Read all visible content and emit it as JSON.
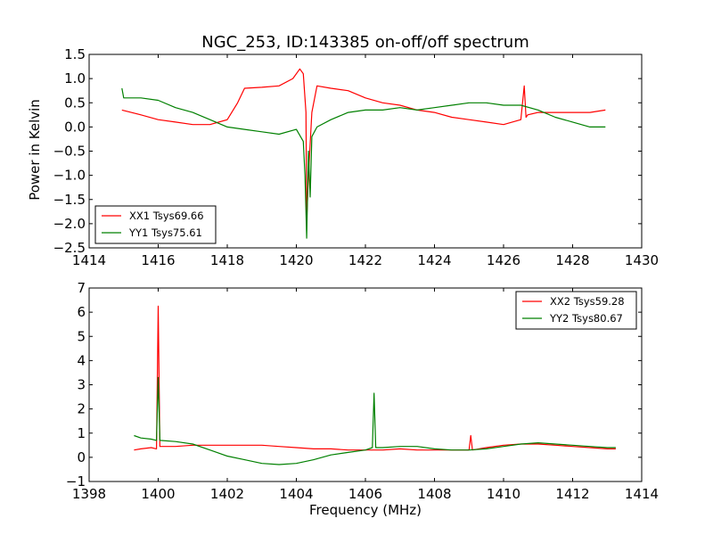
{
  "figure_title": "NGC_253, ID:143385 on-off/off spectrum",
  "colors": {
    "xx": "#ff0000",
    "yy": "#008000",
    "axes": "#000000",
    "background": "#ffffff"
  },
  "chart_data": [
    {
      "type": "line",
      "title": "NGC_253, ID:143385 on-off/off spectrum",
      "xlabel": "",
      "ylabel": "Power in Kelvin",
      "xlim": [
        1414,
        1430
      ],
      "ylim": [
        -2.5,
        1.5
      ],
      "xticks": [
        1414,
        1416,
        1418,
        1420,
        1422,
        1424,
        1426,
        1428,
        1430
      ],
      "yticks": [
        -2.5,
        -2.0,
        -1.5,
        -1.0,
        -0.5,
        0.0,
        0.5,
        1.0,
        1.5
      ],
      "xtick_labels": [
        "1414",
        "1416",
        "1418",
        "1420",
        "1422",
        "1424",
        "1426",
        "1428",
        "1430"
      ],
      "ytick_labels": [
        "−2.5",
        "−2.0",
        "−1.5",
        "−1.0",
        "−0.5",
        "0.0",
        "0.5",
        "1.0",
        "1.5"
      ],
      "legend_position": "lower-left",
      "series": [
        {
          "name": "XX1 Tsys69.66",
          "color": "#ff0000",
          "x": [
            1414.95,
            1415.5,
            1416.0,
            1416.5,
            1417.0,
            1417.5,
            1418.0,
            1418.3,
            1418.5,
            1419.0,
            1419.5,
            1419.9,
            1420.1,
            1420.2,
            1420.28,
            1420.3,
            1420.35,
            1420.45,
            1420.6,
            1421.0,
            1421.5,
            1422.0,
            1422.5,
            1423.0,
            1423.5,
            1424.0,
            1424.5,
            1425.0,
            1425.5,
            1426.0,
            1426.5,
            1426.6,
            1426.65,
            1426.7,
            1427.0,
            1427.5,
            1428.0,
            1428.5,
            1428.95
          ],
          "y": [
            0.35,
            0.25,
            0.15,
            0.1,
            0.05,
            0.05,
            0.15,
            0.5,
            0.8,
            0.82,
            0.85,
            1.0,
            1.2,
            1.1,
            0.3,
            -1.9,
            -1.0,
            0.3,
            0.85,
            0.8,
            0.75,
            0.6,
            0.5,
            0.45,
            0.35,
            0.3,
            0.2,
            0.15,
            0.1,
            0.05,
            0.15,
            0.85,
            0.2,
            0.25,
            0.3,
            0.3,
            0.3,
            0.3,
            0.35
          ]
        },
        {
          "name": "YY1 Tsys75.61",
          "color": "#008000",
          "x": [
            1414.95,
            1415.0,
            1415.5,
            1416.0,
            1416.5,
            1417.0,
            1417.5,
            1418.0,
            1418.5,
            1419.0,
            1419.5,
            1420.0,
            1420.2,
            1420.25,
            1420.3,
            1420.35,
            1420.4,
            1420.45,
            1420.6,
            1421.0,
            1421.5,
            1422.0,
            1422.5,
            1423.0,
            1423.5,
            1424.0,
            1424.5,
            1425.0,
            1425.5,
            1426.0,
            1426.5,
            1427.0,
            1427.5,
            1428.0,
            1428.5,
            1428.95
          ],
          "y": [
            0.8,
            0.6,
            0.6,
            0.55,
            0.4,
            0.3,
            0.15,
            0.0,
            -0.05,
            -0.1,
            -0.15,
            -0.05,
            -0.3,
            -1.0,
            -2.3,
            -0.5,
            -1.45,
            -0.2,
            0.0,
            0.15,
            0.3,
            0.35,
            0.35,
            0.4,
            0.35,
            0.4,
            0.45,
            0.5,
            0.5,
            0.45,
            0.45,
            0.35,
            0.2,
            0.1,
            0.0,
            0.0
          ]
        }
      ]
    },
    {
      "type": "line",
      "title": "",
      "xlabel": "Frequency (MHz)",
      "ylabel": "",
      "xlim": [
        1398,
        1414
      ],
      "ylim": [
        -1,
        7
      ],
      "xticks": [
        1398,
        1400,
        1402,
        1404,
        1406,
        1408,
        1410,
        1412,
        1414
      ],
      "yticks": [
        -1,
        0,
        1,
        2,
        3,
        4,
        5,
        6,
        7
      ],
      "xtick_labels": [
        "1398",
        "1400",
        "1402",
        "1404",
        "1406",
        "1408",
        "1410",
        "1412",
        "1414"
      ],
      "ytick_labels": [
        "−1",
        "0",
        "1",
        "2",
        "3",
        "4",
        "5",
        "6",
        "7"
      ],
      "legend_position": "upper-right",
      "series": [
        {
          "name": "XX2 Tsys59.28",
          "color": "#ff0000",
          "x": [
            1399.3,
            1399.5,
            1399.8,
            1399.95,
            1400.0,
            1400.05,
            1400.5,
            1401.0,
            1401.5,
            1402.0,
            1402.5,
            1403.0,
            1403.5,
            1404.0,
            1404.5,
            1405.0,
            1405.5,
            1406.0,
            1406.5,
            1407.0,
            1407.5,
            1408.0,
            1408.5,
            1409.0,
            1409.05,
            1409.1,
            1409.5,
            1410.0,
            1410.5,
            1411.0,
            1411.5,
            1412.0,
            1412.5,
            1413.0,
            1413.25
          ],
          "y": [
            0.3,
            0.35,
            0.4,
            0.35,
            6.25,
            0.45,
            0.45,
            0.5,
            0.5,
            0.5,
            0.5,
            0.5,
            0.45,
            0.4,
            0.35,
            0.35,
            0.3,
            0.3,
            0.3,
            0.35,
            0.3,
            0.3,
            0.3,
            0.3,
            0.9,
            0.3,
            0.4,
            0.5,
            0.55,
            0.55,
            0.5,
            0.45,
            0.4,
            0.35,
            0.35
          ]
        },
        {
          "name": "YY2 Tsys80.67",
          "color": "#008000",
          "x": [
            1399.3,
            1399.5,
            1399.8,
            1399.95,
            1400.0,
            1400.05,
            1400.5,
            1401.0,
            1401.5,
            1402.0,
            1402.5,
            1403.0,
            1403.5,
            1404.0,
            1404.5,
            1405.0,
            1405.5,
            1406.0,
            1406.2,
            1406.25,
            1406.3,
            1406.5,
            1407.0,
            1407.5,
            1408.0,
            1408.5,
            1409.0,
            1409.5,
            1410.0,
            1410.5,
            1411.0,
            1411.5,
            1412.0,
            1412.5,
            1413.0,
            1413.25
          ],
          "y": [
            0.9,
            0.8,
            0.75,
            0.7,
            3.3,
            0.7,
            0.65,
            0.55,
            0.3,
            0.05,
            -0.1,
            -0.25,
            -0.3,
            -0.25,
            -0.1,
            0.1,
            0.2,
            0.3,
            0.4,
            2.65,
            0.4,
            0.4,
            0.45,
            0.45,
            0.35,
            0.3,
            0.3,
            0.35,
            0.45,
            0.55,
            0.6,
            0.55,
            0.5,
            0.45,
            0.4,
            0.4
          ]
        }
      ]
    }
  ]
}
